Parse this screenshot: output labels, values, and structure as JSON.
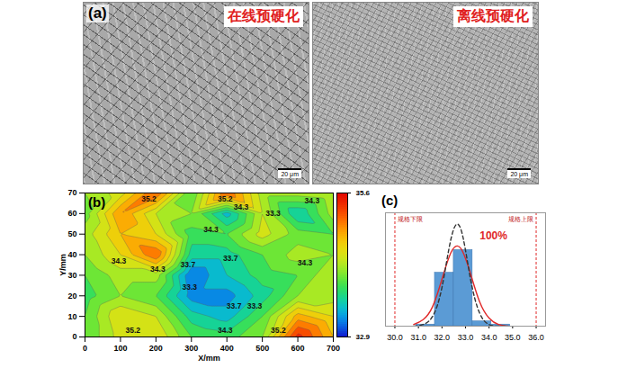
{
  "panel_a": {
    "label": "(a)",
    "images": [
      {
        "title": "在线预硬化",
        "scale_bar": "20 μm"
      },
      {
        "title": "离线预硬化",
        "scale_bar": "20 μm"
      }
    ]
  },
  "chart_data": [
    {
      "panel": "(b)",
      "type": "contour",
      "x_label": "X/mm",
      "y_label": "Y/mm",
      "xlim": [
        0,
        700
      ],
      "xticks": [
        0,
        100,
        200,
        300,
        400,
        500,
        600,
        700
      ],
      "ylim": [
        0,
        70
      ],
      "yticks": [
        0,
        10,
        20,
        30,
        40,
        50,
        60,
        70
      ],
      "x": [
        0,
        100,
        200,
        300,
        400,
        500,
        600,
        700
      ],
      "y": [
        70,
        60,
        50,
        40,
        30,
        20,
        10,
        0
      ],
      "cells": [
        [
          34.2,
          34.5,
          35.2,
          34.0,
          35.2,
          34.3,
          34.3,
          34.4
        ],
        [
          34.1,
          35.0,
          34.4,
          34.2,
          33.5,
          34.4,
          33.6,
          34.3
        ],
        [
          34.3,
          34.8,
          34.6,
          33.9,
          34.0,
          34.5,
          34.1,
          34.0
        ],
        [
          34.2,
          34.6,
          35.2,
          33.7,
          33.7,
          34.0,
          34.3,
          34.2
        ],
        [
          34.0,
          34.3,
          34.3,
          33.2,
          33.6,
          33.9,
          34.0,
          34.4
        ],
        [
          33.9,
          34.2,
          34.0,
          33.3,
          33.3,
          33.7,
          34.2,
          34.3
        ],
        [
          34.0,
          34.6,
          34.4,
          33.7,
          33.5,
          34.0,
          34.9,
          34.6
        ],
        [
          34.0,
          34.5,
          34.6,
          34.0,
          33.9,
          34.2,
          35.5,
          34.8
        ]
      ],
      "colorbar": {
        "range": [
          32.9,
          35.6
        ],
        "ticks": [
          32.9,
          35.6
        ]
      },
      "annotations": [
        {
          "x": 180,
          "y": 67,
          "value": 35.2
        },
        {
          "x": 395,
          "y": 67,
          "value": 35.2
        },
        {
          "x": 440,
          "y": 63,
          "value": 34.3
        },
        {
          "x": 530,
          "y": 60,
          "value": 33.3
        },
        {
          "x": 640,
          "y": 66,
          "value": 34.3
        },
        {
          "x": 355,
          "y": 52,
          "value": 34.3
        },
        {
          "x": 95,
          "y": 37,
          "value": 34.3
        },
        {
          "x": 205,
          "y": 33,
          "value": 34.3
        },
        {
          "x": 290,
          "y": 35,
          "value": 33.7
        },
        {
          "x": 410,
          "y": 38,
          "value": 33.7
        },
        {
          "x": 620,
          "y": 36,
          "value": 34.3
        },
        {
          "x": 295,
          "y": 24,
          "value": 33.3
        },
        {
          "x": 420,
          "y": 15,
          "value": 33.7
        },
        {
          "x": 478,
          "y": 15,
          "value": 33.3
        },
        {
          "x": 135,
          "y": 3,
          "value": 35.2
        },
        {
          "x": 395,
          "y": 3,
          "value": 34.3
        },
        {
          "x": 545,
          "y": 3,
          "value": 35.2
        }
      ]
    },
    {
      "panel": "(c)",
      "type": "histogram",
      "tick_labels": "x",
      "xlim": [
        29.6,
        36.4
      ],
      "xticks": [
        30,
        31,
        32,
        33,
        34,
        35,
        36
      ],
      "ylim": [
        0,
        70
      ],
      "bins": [
        30.9,
        31.7,
        32.5,
        33.3,
        34.1,
        34.9
      ],
      "values": [
        1,
        33,
        47,
        3,
        1
      ],
      "color": "#5b9bd5",
      "series": [
        {
          "type": "line",
          "color": "#e02828",
          "line_style": "solid",
          "x": [
            30.8,
            31.2,
            31.6,
            32.0,
            32.4,
            32.8,
            33.2,
            33.6,
            34.0,
            34.4,
            34.8
          ],
          "values": [
            1,
            4,
            12,
            29,
            46,
            48,
            33,
            15,
            5,
            1,
            0
          ]
        },
        {
          "type": "line",
          "color": "#333333",
          "line_style": "dashed",
          "x": [
            30.8,
            31.2,
            31.6,
            32.0,
            32.4,
            32.8,
            33.2,
            33.6,
            34.0,
            34.4,
            34.8
          ],
          "values": [
            0,
            1,
            6,
            24,
            55,
            60,
            30,
            8,
            1,
            0,
            0
          ]
        }
      ],
      "spec_limits": [
        {
          "value": 30,
          "label": "规格下限"
        },
        {
          "value": 36,
          "label": "规格上限"
        }
      ],
      "annotations": [
        {
          "x": 33.6,
          "y": 56,
          "text": "100%",
          "color": "#e02828"
        }
      ]
    }
  ]
}
